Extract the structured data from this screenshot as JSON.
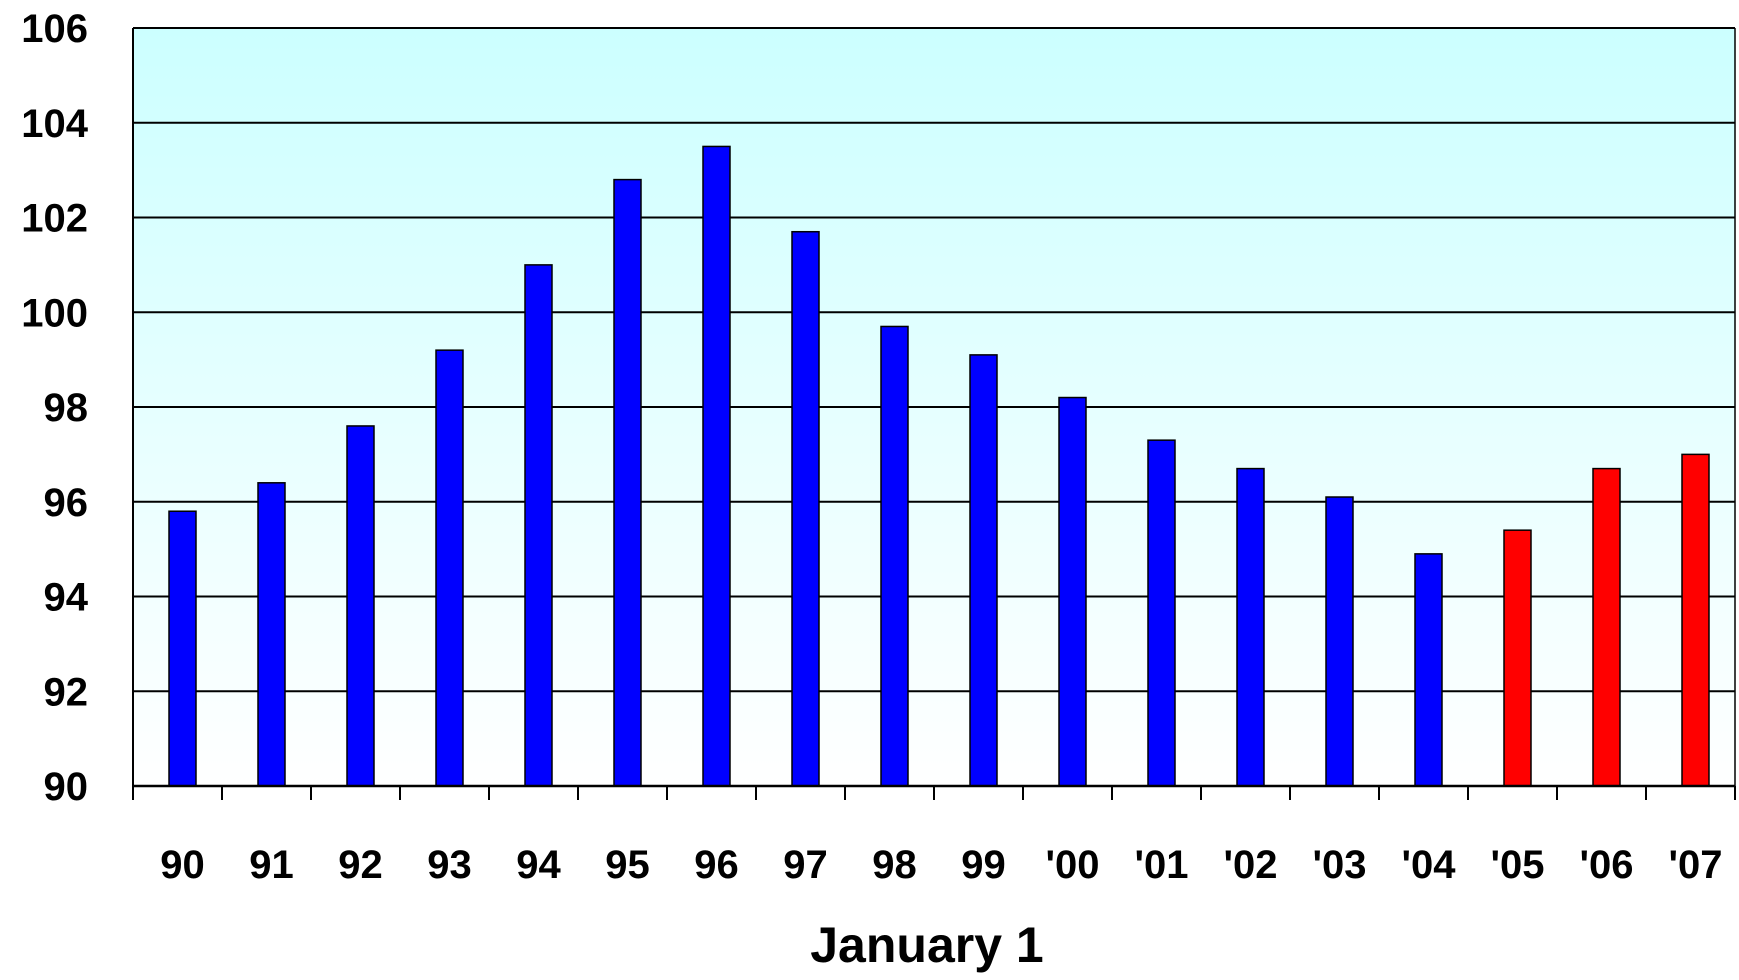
{
  "chart_data": {
    "type": "bar",
    "title": "",
    "xlabel": "January 1",
    "ylabel": "",
    "ylim": [
      90,
      106
    ],
    "yticks": [
      "90",
      "92",
      "94",
      "96",
      "98",
      "100",
      "102",
      "104",
      "106"
    ],
    "grid": true,
    "legend": "none",
    "categories": [
      "90",
      "91",
      "92",
      "93",
      "94",
      "95",
      "96",
      "97",
      "98",
      "99",
      "'00",
      "'01",
      "'02",
      "'03",
      "'04",
      "'05",
      "'06",
      "'07"
    ],
    "values": [
      95.8,
      96.4,
      97.6,
      99.2,
      101.0,
      102.8,
      103.5,
      101.7,
      99.7,
      99.1,
      98.2,
      97.3,
      96.7,
      96.1,
      94.9,
      95.4,
      96.7,
      97.0
    ],
    "colors": [
      "#0000FF",
      "#0000FF",
      "#0000FF",
      "#0000FF",
      "#0000FF",
      "#0000FF",
      "#0000FF",
      "#0000FF",
      "#0000FF",
      "#0000FF",
      "#0000FF",
      "#0000FF",
      "#0000FF",
      "#0000FF",
      "#0000FF",
      "#FF0000",
      "#FF0000",
      "#FF0000"
    ],
    "plot_background": {
      "top": "#CCFFFF",
      "bottom": "#FFFFFF"
    },
    "bar_outline": "#000000",
    "grid_color": "#000000"
  }
}
